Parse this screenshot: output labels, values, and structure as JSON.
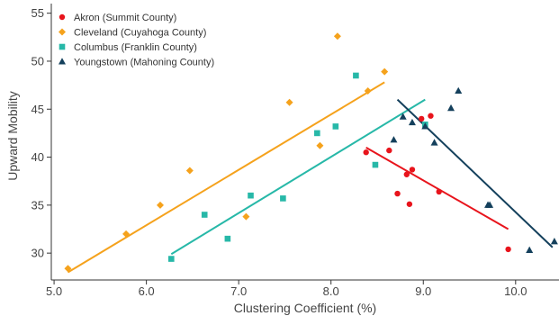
{
  "chart_data": {
    "type": "scatter",
    "title": "",
    "xlabel": "Clustering Coefficient (%)",
    "ylabel": "Upward Mobility",
    "xlim": [
      4.97,
      10.47
    ],
    "ylim": [
      27.2,
      56
    ],
    "x_ticks": [
      5.0,
      6.0,
      7.0,
      8.0,
      9.0,
      10.0
    ],
    "x_tick_labels": [
      "5.0",
      "6.0",
      "7.0",
      "8.0",
      "9.0",
      "10.0"
    ],
    "y_ticks": [
      30,
      35,
      40,
      45,
      50,
      55
    ],
    "y_tick_labels": [
      "30",
      "35",
      "40",
      "45",
      "50",
      "55"
    ],
    "grid": false,
    "legend_position": "top-left",
    "series": [
      {
        "name": "Akron (Summit County)",
        "color": "#e8141c",
        "marker": "circle",
        "points": [
          [
            8.38,
            40.5
          ],
          [
            8.63,
            40.7
          ],
          [
            8.72,
            36.2
          ],
          [
            8.82,
            38.2
          ],
          [
            8.85,
            35.1
          ],
          [
            8.88,
            38.7
          ],
          [
            8.98,
            44.0
          ],
          [
            9.08,
            44.3
          ],
          [
            9.17,
            36.4
          ],
          [
            9.92,
            30.4
          ]
        ],
        "fit": [
          [
            8.38,
            41.0
          ],
          [
            9.92,
            32.5
          ]
        ]
      },
      {
        "name": "Cleveland (Cuyahoga County)",
        "color": "#f5a21c",
        "marker": "diamond",
        "points": [
          [
            5.15,
            28.4
          ],
          [
            5.78,
            32.0
          ],
          [
            6.15,
            35.0
          ],
          [
            6.47,
            38.6
          ],
          [
            7.08,
            33.8
          ],
          [
            7.55,
            45.7
          ],
          [
            7.88,
            41.2
          ],
          [
            8.07,
            52.6
          ],
          [
            8.4,
            46.9
          ],
          [
            8.58,
            48.9
          ]
        ],
        "fit": [
          [
            5.15,
            28.0
          ],
          [
            8.58,
            47.8
          ]
        ]
      },
      {
        "name": "Columbus (Franklin County)",
        "color": "#27b8a8",
        "marker": "square",
        "points": [
          [
            6.27,
            29.4
          ],
          [
            6.63,
            34.0
          ],
          [
            6.88,
            31.5
          ],
          [
            7.13,
            36.0
          ],
          [
            7.48,
            35.7
          ],
          [
            7.85,
            42.5
          ],
          [
            8.05,
            43.2
          ],
          [
            8.27,
            48.5
          ],
          [
            8.48,
            39.2
          ],
          [
            9.02,
            43.4
          ]
        ],
        "fit": [
          [
            6.27,
            29.9
          ],
          [
            9.02,
            46.0
          ]
        ]
      },
      {
        "name": "Youngstown (Mahoning County)",
        "color": "#14405c",
        "marker": "triangle",
        "points": [
          [
            8.68,
            41.8
          ],
          [
            8.78,
            44.2
          ],
          [
            8.88,
            43.6
          ],
          [
            9.02,
            43.2
          ],
          [
            9.12,
            41.5
          ],
          [
            9.3,
            45.1
          ],
          [
            9.38,
            46.9
          ],
          [
            9.7,
            35.0
          ],
          [
            9.72,
            35.0
          ],
          [
            10.15,
            30.3
          ],
          [
            10.42,
            31.2
          ]
        ],
        "fit": [
          [
            8.72,
            46.0
          ],
          [
            10.4,
            30.6
          ]
        ]
      }
    ]
  }
}
